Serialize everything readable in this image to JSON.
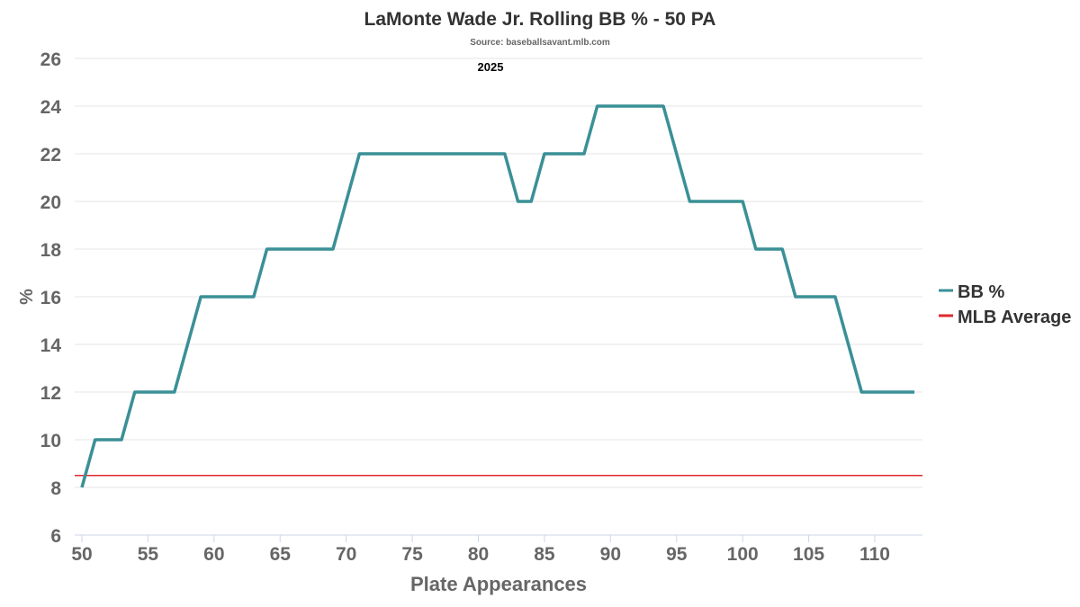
{
  "chart_data": {
    "type": "line",
    "title": "LaMonte Wade Jr. Rolling BB % - 50 PA",
    "subtitle": "Source: baseballsavant.mlb.com",
    "annotation": "2025",
    "xlabel": "Plate Appearances",
    "ylabel": "%",
    "xlim": [
      49.5,
      114.2
    ],
    "ylim": [
      6,
      26
    ],
    "xticks": [
      50,
      55,
      60,
      65,
      70,
      75,
      80,
      85,
      90,
      95,
      100,
      105,
      110
    ],
    "yticks": [
      6,
      8,
      10,
      12,
      14,
      16,
      18,
      20,
      22,
      24,
      26
    ],
    "grid": true,
    "legend_position": "right",
    "series": [
      {
        "name": "BB %",
        "color": "#3a9096",
        "x": [
          50,
          51,
          52,
          53,
          54,
          55,
          56,
          57,
          58,
          59,
          60,
          61,
          62,
          63,
          64,
          65,
          66,
          67,
          68,
          69,
          70,
          71,
          72,
          73,
          74,
          75,
          76,
          77,
          78,
          79,
          80,
          81,
          82,
          83,
          84,
          85,
          86,
          87,
          88,
          89,
          90,
          91,
          92,
          93,
          94,
          95,
          96,
          97,
          98,
          99,
          100,
          101,
          102,
          103,
          104,
          105,
          106,
          107,
          108,
          109,
          110,
          111,
          112,
          113
        ],
        "values": [
          8,
          10,
          10,
          10,
          12,
          12,
          12,
          12,
          14,
          16,
          16,
          16,
          16,
          16,
          18,
          18,
          18,
          18,
          18,
          18,
          20,
          22,
          22,
          22,
          22,
          22,
          22,
          22,
          22,
          22,
          22,
          22,
          22,
          20,
          20,
          22,
          22,
          22,
          22,
          24,
          24,
          24,
          24,
          24,
          24,
          22,
          20,
          20,
          20,
          20,
          20,
          18,
          18,
          18,
          16,
          16,
          16,
          16,
          14,
          12,
          12,
          12,
          12,
          12
        ]
      },
      {
        "name": "MLB Average",
        "color": "#e0282e",
        "constant": 8.5
      }
    ]
  }
}
